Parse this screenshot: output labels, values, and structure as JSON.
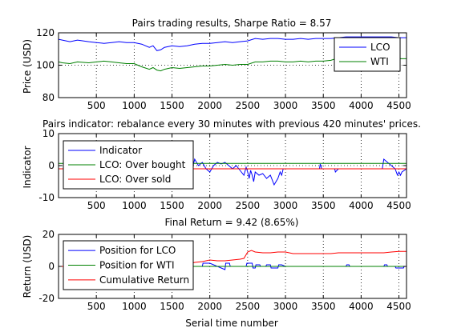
{
  "chart_data": [
    {
      "type": "line",
      "title": "Pairs trading results, Sharpe Ratio = 8.57",
      "xlabel": "",
      "ylabel": "Price (USD)",
      "xlim": [
        0,
        4600
      ],
      "ylim": [
        80,
        120
      ],
      "xticks": [
        500,
        1000,
        1500,
        2000,
        2500,
        3000,
        3500,
        4000,
        4500
      ],
      "yticks": [
        80,
        100,
        120
      ],
      "x_tick_labels": [
        "500",
        "1000",
        "1500",
        "2000",
        "2500",
        "3000",
        "3500",
        "4000",
        "4500"
      ],
      "y_tick_labels": [
        "80",
        "100",
        "120"
      ],
      "grid": "dotted vertical",
      "legend_position": "top-right",
      "series": [
        {
          "name": "LCO",
          "color": "#0000ff",
          "x": [
            0,
            50,
            150,
            250,
            400,
            500,
            600,
            700,
            800,
            900,
            1000,
            1100,
            1200,
            1250,
            1300,
            1350,
            1400,
            1500,
            1600,
            1700,
            1800,
            1900,
            2000,
            2100,
            2200,
            2300,
            2400,
            2500,
            2600,
            2700,
            2800,
            2900,
            3000,
            3100,
            3200,
            3300,
            3400,
            3500,
            3600,
            3700,
            3800,
            3900,
            4000,
            4100,
            4200,
            4300,
            4400,
            4500,
            4600
          ],
          "y": [
            116,
            115.5,
            114.5,
            115.5,
            114.5,
            114,
            113.5,
            114,
            114.5,
            114,
            114,
            113,
            111,
            112,
            109,
            109.5,
            111,
            112,
            111.5,
            112,
            113,
            113.5,
            113.5,
            114,
            114.5,
            114,
            114.5,
            115,
            116.5,
            116,
            116.5,
            116.5,
            116,
            116,
            116.5,
            116,
            116.5,
            116.5,
            116.5,
            117,
            117.5,
            117.5,
            117.5,
            117.5,
            117.5,
            117.5,
            117.5,
            117,
            117
          ]
        },
        {
          "name": "WTI",
          "color": "#008000",
          "x": [
            0,
            50,
            150,
            250,
            400,
            500,
            600,
            700,
            800,
            900,
            1000,
            1100,
            1200,
            1250,
            1300,
            1350,
            1400,
            1500,
            1600,
            1700,
            1800,
            1900,
            2000,
            2100,
            2200,
            2300,
            2400,
            2500,
            2600,
            2700,
            2800,
            2900,
            3000,
            3100,
            3200,
            3300,
            3400,
            3500,
            3600,
            3700,
            3800,
            3900,
            4000,
            4100,
            4200,
            4300,
            4400,
            4500,
            4600
          ],
          "y": [
            102,
            101.5,
            101,
            102,
            101.5,
            102,
            102.5,
            102,
            101.5,
            101,
            101,
            99,
            97.5,
            98.5,
            97,
            96.5,
            97.5,
            98.5,
            98,
            98.5,
            99,
            99.5,
            99.5,
            100,
            100.5,
            100,
            100.5,
            100.5,
            102,
            102,
            102.5,
            102.5,
            102,
            102,
            102.5,
            102,
            102.5,
            102.5,
            103,
            104.5,
            104.5,
            104.5,
            104.5,
            104.5,
            104.5,
            104.5,
            104.5,
            104,
            104
          ]
        }
      ]
    },
    {
      "type": "line",
      "title": "Pairs indicator: rebalance every 30 minutes with previous 420 minutes' prices.",
      "xlabel": "",
      "ylabel": "Indicator",
      "xlim": [
        0,
        4600
      ],
      "ylim": [
        -10,
        10
      ],
      "xticks": [
        500,
        1000,
        1500,
        2000,
        2500,
        3000,
        3500,
        4000,
        4500
      ],
      "yticks": [
        -10,
        0,
        10
      ],
      "x_tick_labels": [
        "500",
        "1000",
        "1500",
        "2000",
        "2500",
        "3000",
        "3500",
        "4000",
        "4500"
      ],
      "y_tick_labels": [
        "-10",
        "0",
        "10"
      ],
      "grid": "dotted vertical",
      "legend_position": "top-left",
      "series": [
        {
          "name": "Indicator",
          "color": "#0000ff",
          "x": [
            1600,
            1620,
            1640,
            1660,
            1680,
            1700,
            1720,
            1740,
            1760,
            1780,
            1800,
            1850,
            1900,
            1950,
            2000,
            2050,
            2100,
            2150,
            2200,
            2250,
            2300,
            2350,
            2400,
            2450,
            2480,
            2500,
            2520,
            2540,
            2560,
            2580,
            2600,
            2650,
            2700,
            2750,
            2800,
            2850,
            2900,
            2930,
            2950,
            2970,
            3000,
            3100,
            3200,
            3300,
            3400,
            3450,
            3460,
            3480,
            3500,
            3600,
            3650,
            3660,
            3700,
            3800,
            3900,
            4000,
            4100,
            4200,
            4280,
            4300,
            4350,
            4400,
            4450,
            4480,
            4500,
            4520,
            4540,
            4600
          ],
          "y": [
            0,
            2,
            -1,
            3,
            -4,
            2,
            4,
            1,
            3,
            0,
            2,
            0,
            1,
            -1,
            -2,
            0,
            1,
            0.5,
            1,
            0,
            -1,
            0,
            -1.5,
            -3,
            -0.5,
            -2,
            -4,
            -1.5,
            -3,
            -5,
            -2,
            -3,
            -2.5,
            -4,
            -3,
            -6,
            -4,
            -2,
            -3,
            -1,
            -1,
            -1,
            -1,
            -1,
            -1,
            -1,
            0.5,
            -1,
            -1,
            -1,
            -1,
            -2,
            -1,
            -1,
            -1,
            -1,
            -1,
            -1,
            -1,
            2,
            1,
            0,
            -1,
            -3,
            -2,
            -3,
            -2,
            -1
          ]
        },
        {
          "name": "LCO: Over bought",
          "color": "#008000",
          "x": [
            0,
            4600
          ],
          "y": [
            0.7,
            0.7
          ]
        },
        {
          "name": "LCO: Over sold",
          "color": "#ff0000",
          "x": [
            0,
            4600
          ],
          "y": [
            -1,
            -1
          ]
        }
      ]
    },
    {
      "type": "line",
      "title": "Final Return = 9.42 (8.65%)",
      "xlabel": "Serial time number",
      "ylabel": "Return (USD)",
      "xlim": [
        0,
        4600
      ],
      "ylim": [
        -20,
        20
      ],
      "xticks": [
        500,
        1000,
        1500,
        2000,
        2500,
        3000,
        3500,
        4000,
        4500
      ],
      "yticks": [
        -20,
        0,
        20
      ],
      "x_tick_labels": [
        "500",
        "1000",
        "1500",
        "2000",
        "2500",
        "3000",
        "3500",
        "4000",
        "4500"
      ],
      "y_tick_labels": [
        "-20",
        "0",
        "20"
      ],
      "grid": "dotted vertical",
      "legend_position": "top-left",
      "series": [
        {
          "name": "Position for LCO",
          "color": "#0000ff",
          "x": [
            0,
            1660,
            1670,
            1700,
            1710,
            1740,
            1750,
            1900,
            1910,
            2000,
            2200,
            2210,
            2260,
            2270,
            2480,
            2490,
            2560,
            2570,
            2600,
            2610,
            2660,
            2670,
            2740,
            2750,
            2800,
            2810,
            2900,
            2910,
            2950,
            3000,
            3800,
            3810,
            3840,
            3850,
            4300,
            4310,
            4340,
            4350,
            4450,
            4460,
            4560,
            4570,
            4600
          ],
          "y": [
            0,
            0,
            2,
            2,
            0,
            0,
            0,
            0,
            2,
            2,
            -2,
            2,
            2,
            0,
            0,
            2,
            2,
            -1,
            -1,
            1,
            1,
            0,
            0,
            1,
            1,
            -1,
            -1,
            1,
            1,
            0,
            0,
            1,
            1,
            0,
            0,
            1,
            1,
            0,
            0,
            -1,
            -1,
            0,
            0
          ]
        },
        {
          "name": "Position for WTI",
          "color": "#008000",
          "x": [
            0,
            4600
          ],
          "y": [
            0,
            0
          ]
        },
        {
          "name": "Cumulative Return",
          "color": "#ff0000",
          "x": [
            0,
            1600,
            1700,
            1800,
            1900,
            2000,
            2100,
            2200,
            2300,
            2400,
            2450,
            2500,
            2550,
            2600,
            2700,
            2800,
            2900,
            3000,
            3100,
            3200,
            3300,
            3400,
            3500,
            3600,
            3700,
            3800,
            3900,
            4000,
            4100,
            4200,
            4300,
            4400,
            4500,
            4600
          ],
          "y": [
            0,
            0,
            1,
            2.5,
            3,
            4,
            3.5,
            3.5,
            4,
            4.5,
            5,
            9,
            10,
            9,
            8.5,
            8.5,
            9,
            9,
            8,
            8,
            8,
            8,
            8,
            8,
            8.5,
            8.5,
            8.5,
            8.5,
            8.5,
            8.5,
            8.5,
            9,
            9.4,
            9.4
          ]
        }
      ]
    }
  ]
}
